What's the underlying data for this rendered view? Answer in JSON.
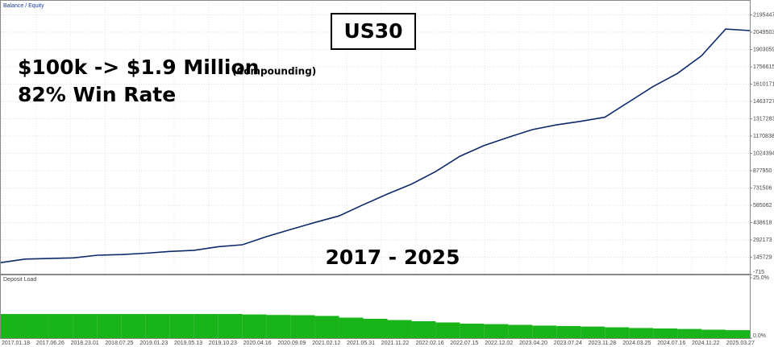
{
  "chart_data": [
    {
      "type": "line",
      "title": "US30",
      "annotations": [
        "$100k -> $1.9 Million",
        "(Compounding)",
        "82% Win Rate",
        "2017 - 2025"
      ],
      "series": [
        {
          "name": "Balance / Equity",
          "color": "#0c2a6b",
          "values": [
            100000,
            130000,
            135000,
            140000,
            163000,
            168000,
            180000,
            195000,
            204000,
            235000,
            251000,
            320000,
            381000,
            440000,
            495000,
            590000,
            680000,
            765000,
            870000,
            1000000,
            1090000,
            1160000,
            1225000,
            1265000,
            1295000,
            1330000,
            1460000,
            1590000,
            1700000,
            1850000,
            2076000,
            2063000
          ]
        }
      ],
      "ylim": [
        -715,
        2308000
      ],
      "yticks": [
        -715,
        145729,
        292173,
        438618,
        585062,
        731506,
        877950,
        1024394,
        1170838,
        1317283,
        1463727,
        1610171,
        1756615,
        1903059,
        2049503,
        2195447
      ],
      "grid": true
    },
    {
      "type": "bar",
      "series": [
        {
          "name": "Deposit Load",
          "color": "#19b31a",
          "values": [
            10,
            10,
            10,
            10,
            10,
            10,
            10,
            10,
            10,
            10,
            9.8,
            9.6,
            9.5,
            9.2,
            8.5,
            8,
            7.5,
            7,
            6.5,
            6,
            5.8,
            5.5,
            5.2,
            5,
            4.8,
            4.5,
            4.2,
            4,
            3.8,
            3.5,
            3.3
          ]
        }
      ],
      "ylim": [
        0,
        25
      ],
      "yticks": [
        {
          "value": 0,
          "label": "0.0%"
        },
        {
          "value": 25,
          "label": "25.0%"
        }
      ],
      "xtick_labels": [
        "2017.01.18",
        "2017.06.26",
        "2018.23.01",
        "2018.07.25",
        "2019.01.23",
        "2019.05.13",
        "2019.10.23",
        "2020.04.16",
        "2020.09.09",
        "2021.02.12",
        "2021.05.31",
        "2021.11.22",
        "2022.02.16",
        "2022.07.15",
        "2022.12.02",
        "2023.04.20",
        "2023.07.24",
        "2023.11.28",
        "2024.03.25",
        "2024.07.16",
        "2024.11.22",
        "2025.03.27"
      ]
    }
  ]
}
